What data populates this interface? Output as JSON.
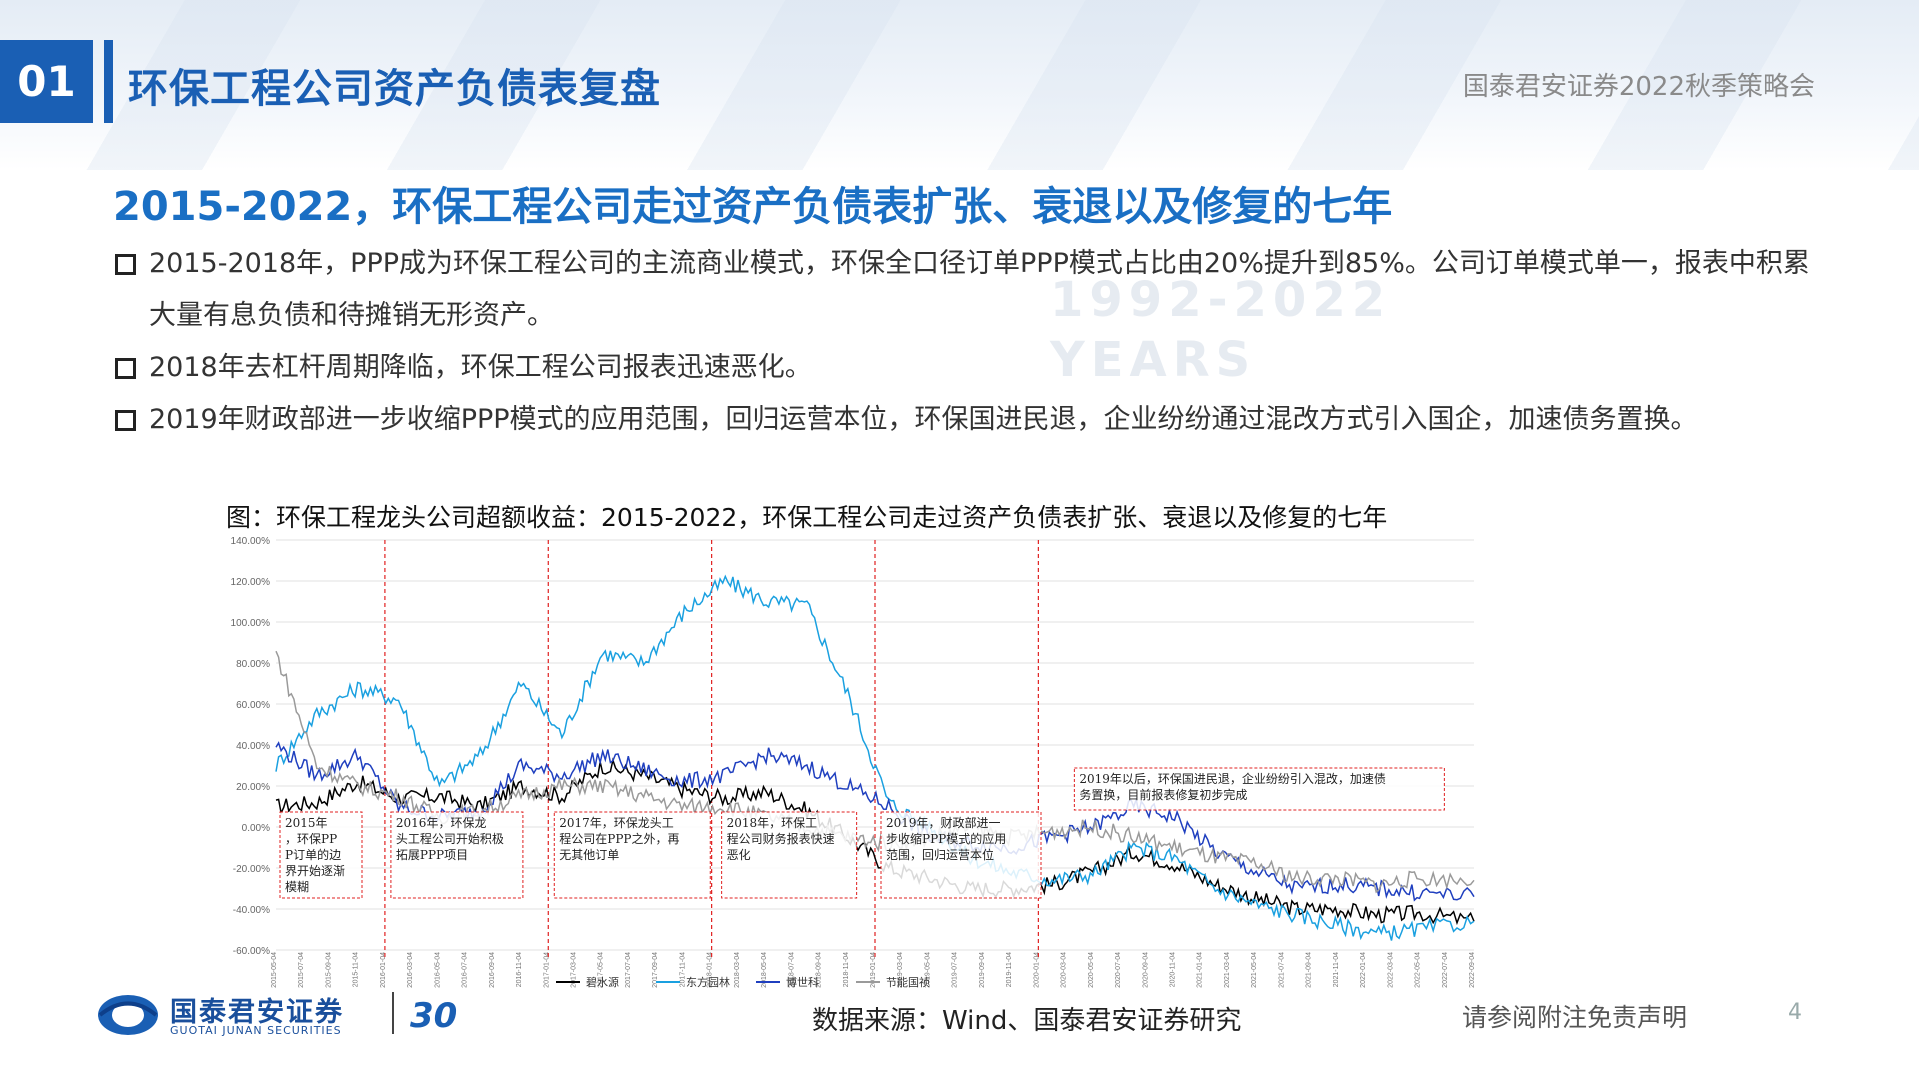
{
  "header": {
    "section_number": "01",
    "section_title": "环保工程公司资产负债表复盘",
    "event_name": "国泰君安证券2022秋季策略会"
  },
  "headline": "2015-2022，环保工程公司走过资产负债表扩张、衰退以及修复的七年",
  "bullets": [
    "2015-2018年，PPP成为环保工程公司的主流商业模式，环保全口径订单PPP模式占比由20%提升到85%。公司订单模式单一，报表中积累大量有息负债和待摊销无形资产。",
    "2018年去杠杆周期降临，环保工程公司报表迅速恶化。",
    "2019年财政部进一步收缩PPP模式的应用范围，回归运营本位，环保国进民退，企业纷纷通过混改方式引入国企，加速债务置换。"
  ],
  "watermark": [
    "1992-2022",
    "YEARS"
  ],
  "chart_title": "图：环保工程龙头公司超额收益：2015-2022，环保工程公司走过资产负债表扩张、衰退以及修复的七年",
  "chart_data": {
    "type": "line",
    "ylim": [
      -60,
      140
    ],
    "y_ticks": [
      "140.00%",
      "120.00%",
      "100.00%",
      "80.00%",
      "60.00%",
      "40.00%",
      "20.00%",
      "0.00%",
      "-20.00%",
      "-40.00%",
      "-60.00%"
    ],
    "x_range": [
      "2015-05",
      "2022-09"
    ],
    "x": [
      "2015-05",
      "2015-08",
      "2015-11",
      "2016-02",
      "2016-05",
      "2016-08",
      "2016-11",
      "2017-02",
      "2017-05",
      "2017-08",
      "2017-11",
      "2018-02",
      "2018-05",
      "2018-08",
      "2018-11",
      "2019-02",
      "2019-05",
      "2019-08",
      "2019-11",
      "2020-02",
      "2020-05",
      "2020-08",
      "2020-11",
      "2021-02",
      "2021-05",
      "2021-08",
      "2021-11",
      "2022-02",
      "2022-05",
      "2022-09"
    ],
    "series": [
      {
        "name": "碧水源",
        "color": "#000000",
        "values": [
          10,
          12,
          22,
          14,
          15,
          10,
          20,
          15,
          30,
          25,
          18,
          14,
          17,
          8,
          -5,
          -20,
          -25,
          -30,
          -30,
          -28,
          -22,
          -12,
          -18,
          -28,
          -35,
          -40,
          -40,
          -43,
          -42,
          -46
        ]
      },
      {
        "name": "东方园林",
        "color": "#1aa0e0",
        "values": [
          30,
          55,
          68,
          62,
          20,
          35,
          70,
          45,
          85,
          80,
          105,
          120,
          110,
          108,
          65,
          12,
          0,
          -15,
          -22,
          -26,
          -23,
          -10,
          -15,
          -30,
          -38,
          -43,
          -48,
          -52,
          -50,
          -46
        ]
      },
      {
        "name": "博世科",
        "color": "#1f3fbf",
        "values": [
          40,
          25,
          35,
          10,
          5,
          8,
          30,
          25,
          35,
          28,
          22,
          25,
          35,
          30,
          20,
          10,
          -5,
          -8,
          -10,
          -5,
          0,
          10,
          5,
          -12,
          -22,
          -30,
          -28,
          -30,
          -32,
          -34
        ]
      },
      {
        "name": "节能国祯",
        "color": "#9a9a9a",
        "values": [
          85,
          30,
          20,
          15,
          5,
          8,
          15,
          20,
          20,
          15,
          10,
          10,
          5,
          0,
          -5,
          -8,
          -5,
          0,
          -5,
          -2,
          0,
          -5,
          -10,
          -15,
          -18,
          -25,
          -25,
          -28,
          -25,
          -26
        ]
      }
    ],
    "period_boundaries": [
      "2016-01",
      "2017-01",
      "2018-01",
      "2019-01",
      "2020-01"
    ],
    "annotations": [
      "2015年，环保PPP订单的边界开始逐渐模糊",
      "2016年，环保龙头工程公司开始积极拓展PPP项目",
      "2017年，环保龙头工程公司在PPP之外，再无其他订单",
      "2018年，环保工程公司财务报表快速恶化",
      "2019年，财政部进一步收缩PPP模式的应用范围，回归运营本位",
      "2019年以后，环保国进民退，企业纷纷引入混改，加速债务置换，目前报表修复初步完成"
    ]
  },
  "footer": {
    "logo_text": "国泰君安证券",
    "logo_sub": "GUOTAI JUNAN SECURITIES",
    "logo_30": "30",
    "source": "数据来源：Wind、国泰君安证券研究",
    "disclaimer": "请参阅附注免责声明",
    "page_number": "4"
  }
}
